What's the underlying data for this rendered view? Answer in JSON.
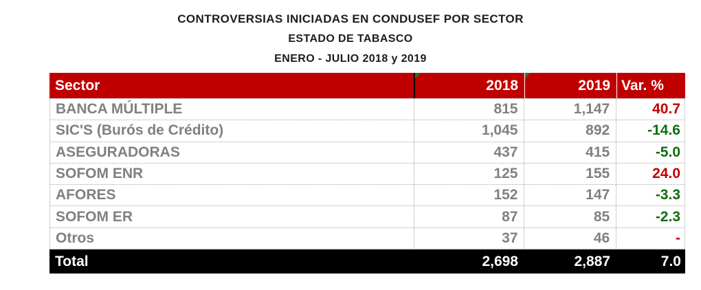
{
  "title": {
    "line1": "CONTROVERSIAS INICIADAS EN CONDUSEF POR SECTOR",
    "line2": "ESTADO DE TABASCO",
    "line3": "ENERO - JULIO 2018 y 2019"
  },
  "table": {
    "columns": [
      "Sector",
      "2018",
      "2019",
      "Var. %"
    ],
    "rows": [
      {
        "sector": "BANCA MÚLTIPLE",
        "y2018": "815",
        "y2019": "1,147",
        "var": "40.7",
        "trend": "up"
      },
      {
        "sector": "SIC'S (Burós de Crédito)",
        "y2018": "1,045",
        "y2019": "892",
        "var": "-14.6",
        "trend": "down"
      },
      {
        "sector": "ASEGURADORAS",
        "y2018": "437",
        "y2019": "415",
        "var": "-5.0",
        "trend": "down"
      },
      {
        "sector": "SOFOM ENR",
        "y2018": "125",
        "y2019": "155",
        "var": "24.0",
        "trend": "up"
      },
      {
        "sector": "AFORES",
        "y2018": "152",
        "y2019": "147",
        "var": "-3.3",
        "trend": "down"
      },
      {
        "sector": "SOFOM ER",
        "y2018": "87",
        "y2019": "85",
        "var": "-2.3",
        "trend": "down"
      },
      {
        "sector": "Otros",
        "y2018": "37",
        "y2019": "46",
        "var": "-",
        "trend": "up"
      }
    ],
    "total": {
      "sector": "Total",
      "y2018": "2,698",
      "y2019": "2,887",
      "var": "7.0"
    }
  },
  "colors": {
    "header_bg": "#c00000",
    "total_bg": "#000000",
    "row_text": "#808080",
    "positive_var": "#c00000",
    "negative_var": "#0e6e0e",
    "flag_green": "#1f7d1f"
  },
  "chart_data": {
    "type": "table",
    "title": "CONTROVERSIAS INICIADAS EN CONDUSEF POR SECTOR",
    "subtitle": "ESTADO DE TABASCO",
    "period": "ENERO - JULIO 2018 y 2019",
    "columns": [
      "Sector",
      "2018",
      "2019",
      "Var. %"
    ],
    "rows": [
      [
        "BANCA MÚLTIPLE",
        815,
        1147,
        40.7
      ],
      [
        "SIC'S (Burós de Crédito)",
        1045,
        892,
        -14.6
      ],
      [
        "ASEGURADORAS",
        437,
        415,
        -5.0
      ],
      [
        "SOFOM ENR",
        125,
        155,
        24.0
      ],
      [
        "AFORES",
        152,
        147,
        -3.3
      ],
      [
        "SOFOM ER",
        87,
        85,
        -2.3
      ],
      [
        "Otros",
        37,
        46,
        null
      ]
    ],
    "total": [
      "Total",
      2698,
      2887,
      7.0
    ]
  }
}
